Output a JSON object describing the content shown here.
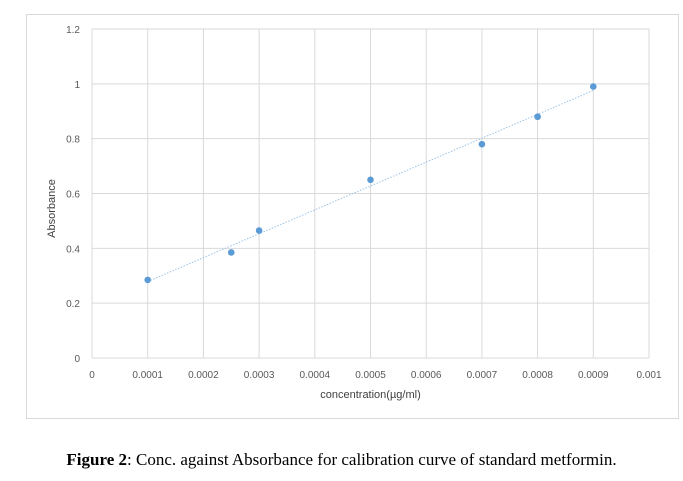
{
  "chart_data": {
    "type": "scatter",
    "title": "",
    "xlabel": "concentration(µg/ml)",
    "ylabel": "Absorbance",
    "xlim": [
      0,
      0.001
    ],
    "ylim": [
      0,
      1.2
    ],
    "x_ticks": [
      "0",
      "0.0001",
      "0.0002",
      "0.0003",
      "0.0004",
      "0.0005",
      "0.0006",
      "0.0007",
      "0.0008",
      "0.0009",
      "0.001"
    ],
    "y_ticks": [
      "0",
      "0.2",
      "0.4",
      "0.6",
      "0.8",
      "1",
      "1.2"
    ],
    "grid": true,
    "trendline": "linear",
    "series": [
      {
        "x": [
          0.0001,
          0.00025,
          0.0003,
          0.0005,
          0.0007,
          0.0008,
          0.0009
        ],
        "y": [
          0.285,
          0.385,
          0.465,
          0.65,
          0.78,
          0.88,
          0.99
        ]
      }
    ],
    "colors": {
      "marker": "#5b9bd5",
      "grid": "#d9d9d9",
      "trendline": "#9dc3e6"
    }
  },
  "caption": {
    "label": "Figure 2",
    "text": ": Conc. against Absorbance for calibration curve of standard metformin."
  }
}
